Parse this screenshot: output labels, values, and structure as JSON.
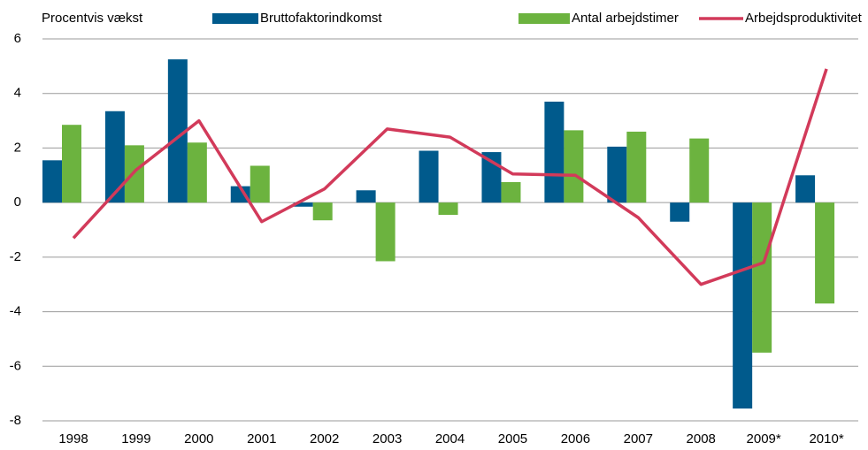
{
  "chart_data": {
    "type": "bar",
    "y_label": "Procentvis vækst",
    "categories": [
      "1998",
      "1999",
      "2000",
      "2001",
      "2002",
      "2003",
      "2004",
      "2005",
      "2006",
      "2007",
      "2008",
      "2009*",
      "2010*"
    ],
    "series": [
      {
        "name": "Bruttofaktorindkomst",
        "type": "bar",
        "color": "#005a8c",
        "values": [
          1.55,
          3.35,
          5.25,
          0.6,
          -0.15,
          0.45,
          1.9,
          1.85,
          3.7,
          2.05,
          -0.7,
          -7.55,
          1.0
        ]
      },
      {
        "name": "Antal arbejdstimer",
        "type": "bar",
        "color": "#6cb33f",
        "values": [
          2.85,
          2.1,
          2.2,
          1.35,
          -0.65,
          -2.15,
          -0.45,
          0.75,
          2.65,
          2.6,
          2.35,
          -5.5,
          -3.7
        ]
      },
      {
        "name": "Arbejdsproduktivitet",
        "type": "line",
        "color": "#d23a5a",
        "values": [
          -1.3,
          1.2,
          3.0,
          -0.7,
          0.5,
          2.7,
          2.4,
          1.05,
          1.0,
          -0.55,
          -3.0,
          -2.2,
          4.9
        ]
      }
    ],
    "ylim": [
      -8,
      6
    ],
    "yticks": [
      -8,
      -6,
      -4,
      -2,
      0,
      2,
      4,
      6
    ],
    "grid": true
  }
}
